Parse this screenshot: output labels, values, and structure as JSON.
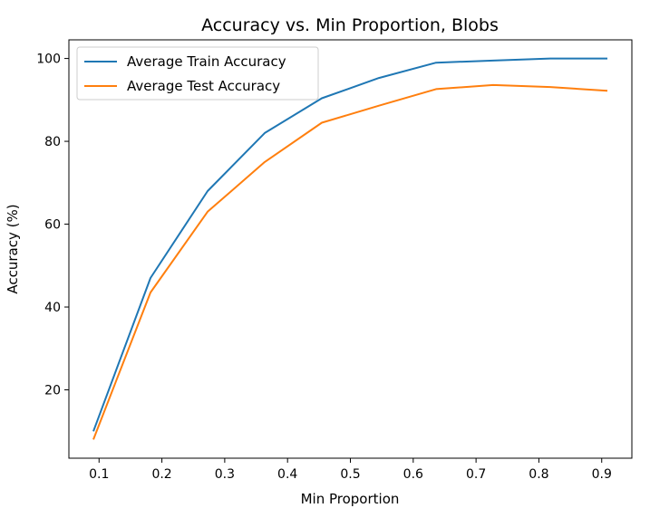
{
  "chart_data": {
    "type": "line",
    "title": "Accuracy vs. Min Proportion, Blobs",
    "xlabel": "Min Proportion",
    "ylabel": "Accuracy (%)",
    "xlim": [
      0.052,
      0.948
    ],
    "ylim": [
      3.5,
      104.5
    ],
    "xticks": [
      0.1,
      0.2,
      0.3,
      0.4,
      0.5,
      0.6,
      0.7,
      0.8,
      0.9
    ],
    "xtick_labels": [
      "0.1",
      "0.2",
      "0.3",
      "0.4",
      "0.5",
      "0.6",
      "0.7",
      "0.8",
      "0.9"
    ],
    "yticks": [
      20,
      40,
      60,
      80,
      100
    ],
    "ytick_labels": [
      "20",
      "40",
      "60",
      "80",
      "100"
    ],
    "grid": false,
    "legend_position": "top-left",
    "x": [
      0.0909,
      0.1818,
      0.2727,
      0.3636,
      0.4545,
      0.5455,
      0.6364,
      0.7273,
      0.8182,
      0.9091
    ],
    "series": [
      {
        "name": "Average Train Accuracy",
        "color": "#1f77b4",
        "values": [
          10.0,
          47.0,
          68.0,
          82.0,
          90.4,
          95.3,
          99.0,
          99.5,
          100.0,
          100.0
        ]
      },
      {
        "name": "Average Test Accuracy",
        "color": "#ff7f0e",
        "values": [
          8.0,
          43.5,
          63.0,
          75.0,
          84.5,
          88.6,
          92.6,
          93.6,
          93.1,
          92.2
        ]
      }
    ]
  }
}
